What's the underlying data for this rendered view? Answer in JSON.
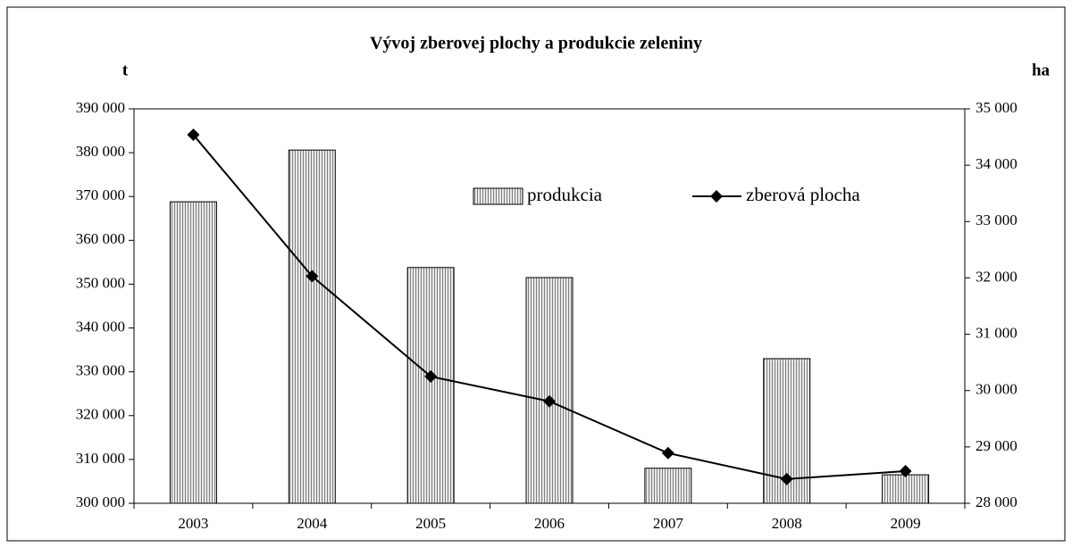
{
  "chart_data": {
    "type": "bar+line",
    "title": "Vývoj zberovej plochy  a produkcie zeleniny",
    "ylabel": "t",
    "y2label": "ha",
    "categories": [
      "2003",
      "2004",
      "2005",
      "2006",
      "2007",
      "2008",
      "2009"
    ],
    "series": [
      {
        "name": "produkcia",
        "type": "bar",
        "color": "#c0c0c0",
        "values": [
          368800,
          380600,
          353800,
          351500,
          308000,
          333000,
          306500
        ]
      },
      {
        "name": "zberová plocha",
        "type": "line",
        "axis": "y2",
        "color": "#000000",
        "values": [
          34540,
          32030,
          30250,
          29810,
          28890,
          28430,
          28570
        ]
      }
    ],
    "ylim": [
      300000,
      390000
    ],
    "yticks": [
      {
        "value": 300000,
        "label": "300 000"
      },
      {
        "value": 310000,
        "label": "310 000"
      },
      {
        "value": 320000,
        "label": "320 000"
      },
      {
        "value": 330000,
        "label": "330 000"
      },
      {
        "value": 340000,
        "label": "340 000"
      },
      {
        "value": 350000,
        "label": "350 000"
      },
      {
        "value": 360000,
        "label": "360 000"
      },
      {
        "value": 370000,
        "label": "370 000"
      },
      {
        "value": 380000,
        "label": "380 000"
      },
      {
        "value": 390000,
        "label": "390 000"
      }
    ],
    "y2lim": [
      28000,
      35000
    ],
    "y2ticks": [
      {
        "value": 28000,
        "label": "28 000"
      },
      {
        "value": 29000,
        "label": "29 000"
      },
      {
        "value": 30000,
        "label": "30 000"
      },
      {
        "value": 31000,
        "label": "31 000"
      },
      {
        "value": 32000,
        "label": "32 000"
      },
      {
        "value": 33000,
        "label": "33 000"
      },
      {
        "value": 34000,
        "label": "34 000"
      },
      {
        "value": 35000,
        "label": "35 000"
      }
    ],
    "grid": false,
    "legend": "top-right"
  }
}
